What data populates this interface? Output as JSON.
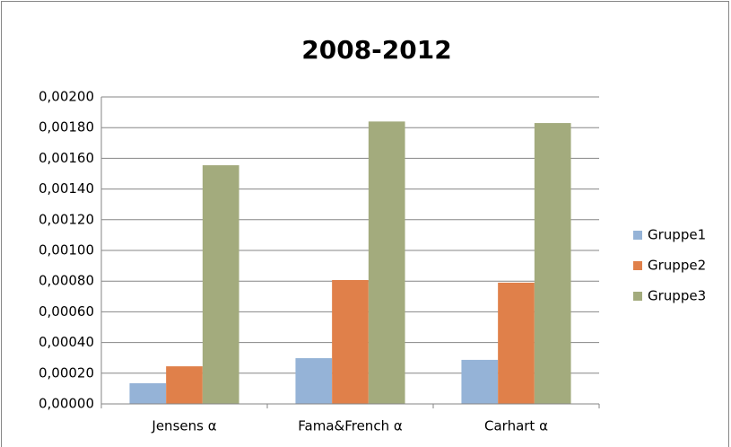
{
  "chart_data": {
    "type": "bar",
    "title": "2008-2012",
    "categories": [
      "Jensens α",
      "Fama&French α",
      "Carhart α"
    ],
    "series": [
      {
        "name": "Gruppe1",
        "color": "#95b3d7",
        "values": [
          0.000135,
          0.000298,
          0.000287
        ]
      },
      {
        "name": "Gruppe2",
        "color": "#e0804a",
        "values": [
          0.000245,
          0.000807,
          0.00079
        ]
      },
      {
        "name": "Gruppe3",
        "color": "#a3ab7d",
        "values": [
          0.001555,
          0.00184,
          0.00183
        ]
      }
    ],
    "ylim": [
      0,
      0.002
    ],
    "yticks": [
      {
        "value": 0,
        "label": "0,00000"
      },
      {
        "value": 0.0002,
        "label": "0,00020"
      },
      {
        "value": 0.0004,
        "label": "0,00040"
      },
      {
        "value": 0.0006,
        "label": "0,00060"
      },
      {
        "value": 0.0008,
        "label": "0,00080"
      },
      {
        "value": 0.001,
        "label": "0,00100"
      },
      {
        "value": 0.0012,
        "label": "0,00120"
      },
      {
        "value": 0.0014,
        "label": "0,00140"
      },
      {
        "value": 0.0016,
        "label": "0,00160"
      },
      {
        "value": 0.0018,
        "label": "0,00180"
      },
      {
        "value": 0.002,
        "label": "0,00200"
      }
    ],
    "grid": true,
    "legend": "right"
  }
}
